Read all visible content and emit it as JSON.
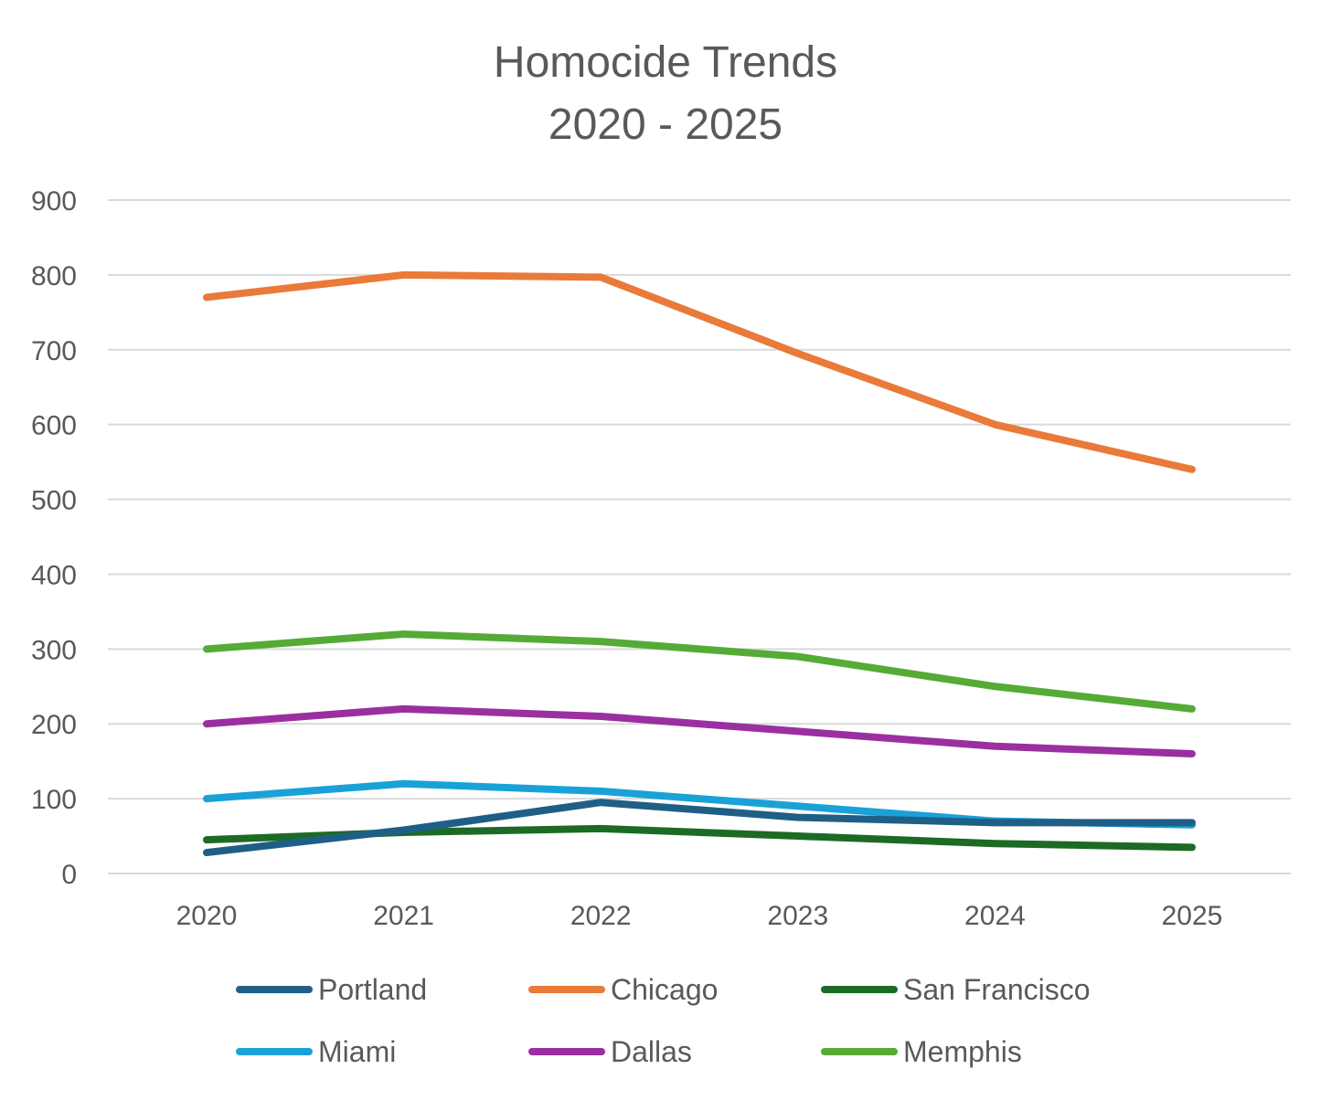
{
  "chart_data": {
    "type": "line",
    "title": [
      "Homocide Trends",
      "2020 - 2025"
    ],
    "xlabel": "",
    "ylabel": "",
    "categories": [
      "2020",
      "2021",
      "2022",
      "2023",
      "2024",
      "2025"
    ],
    "ylim": [
      0,
      900
    ],
    "yticks": [
      0,
      100,
      200,
      300,
      400,
      500,
      600,
      700,
      800,
      900
    ],
    "grid": true,
    "legend_position": "bottom",
    "series": [
      {
        "name": "Portland",
        "color": "#1f5f86",
        "values": [
          28,
          58,
          95,
          75,
          68,
          68
        ]
      },
      {
        "name": "Chicago",
        "color": "#e97a39",
        "values": [
          770,
          800,
          797,
          695,
          600,
          540
        ]
      },
      {
        "name": "San Francisco",
        "color": "#1d6a24",
        "values": [
          45,
          55,
          60,
          50,
          40,
          35
        ]
      },
      {
        "name": "Miami",
        "color": "#1aa1d8",
        "values": [
          100,
          120,
          110,
          90,
          70,
          65
        ]
      },
      {
        "name": "Dallas",
        "color": "#9b2fa0",
        "values": [
          200,
          220,
          210,
          190,
          170,
          160
        ]
      },
      {
        "name": "Memphis",
        "color": "#55ab35",
        "values": [
          300,
          320,
          310,
          290,
          250,
          220
        ]
      }
    ]
  }
}
